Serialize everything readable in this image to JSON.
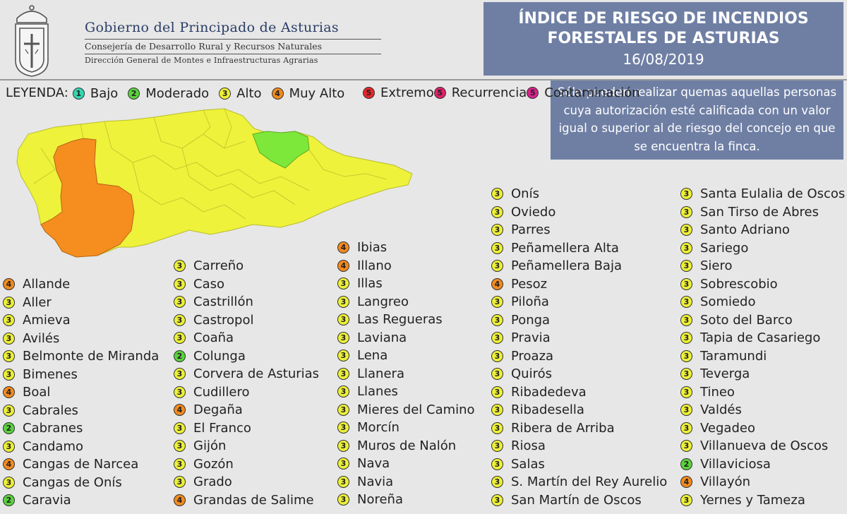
{
  "header": {
    "gov_title": "Gobierno del Principado de Asturias",
    "line1": "Consejería de Desarrollo Rural y Recursos Naturales",
    "line2": "Dirección General de Montes e Infraestructuras Agrarias",
    "title_line1": "ÍNDICE DE RIESGO DE INCENDIOS",
    "title_line2": "FORESTALES DE ASTURIAS",
    "date": "16/08/2019"
  },
  "info_text": "Sólo pueden realizar quemas aquellas personas cuya autorización esté calificada con un valor igual o superior al de riesgo del concejo en que se encuentra la finca.",
  "colors": {
    "1": "#33d6b0",
    "2": "#5ad23c",
    "3": "#ecf037",
    "4": "#f28a1e",
    "5": "#e8262a",
    "5r": "#e0206a",
    "5c": "#d8208c",
    "header_box": "#6f7fa4",
    "map_yellow": "#eef23a",
    "map_green": "#7ee83a",
    "map_orange": "#f58e1e"
  },
  "legend": {
    "title": "LEYENDA:",
    "items": [
      {
        "level": "1",
        "label": "Bajo",
        "color": "#33d6b0"
      },
      {
        "level": "2",
        "label": "Moderado",
        "color": "#5ad23c"
      },
      {
        "level": "3",
        "label": "Alto",
        "color": "#ecf037"
      },
      {
        "level": "4",
        "label": "Muy Alto",
        "color": "#f28a1e"
      }
    ],
    "stack": [
      {
        "level": "5",
        "label": "Extremo",
        "color": "#e8262a"
      },
      {
        "level": "5",
        "label": "Recurrencia",
        "color": "#e0206a"
      },
      {
        "level": "5",
        "label": "Contaminación",
        "color": "#d8208c"
      }
    ]
  },
  "municipalities": {
    "col1": [
      {
        "name": "Allande",
        "level": "4"
      },
      {
        "name": "Aller",
        "level": "3"
      },
      {
        "name": "Amieva",
        "level": "3"
      },
      {
        "name": "Avilés",
        "level": "3"
      },
      {
        "name": "Belmonte de Miranda",
        "level": "3"
      },
      {
        "name": "Bimenes",
        "level": "3"
      },
      {
        "name": "Boal",
        "level": "4"
      },
      {
        "name": "Cabrales",
        "level": "3"
      },
      {
        "name": "Cabranes",
        "level": "2"
      },
      {
        "name": "Candamo",
        "level": "3"
      },
      {
        "name": "Cangas de Narcea",
        "level": "4"
      },
      {
        "name": "Cangas de Onís",
        "level": "3"
      },
      {
        "name": "Caravia",
        "level": "2"
      }
    ],
    "col2": [
      {
        "name": "Carreño",
        "level": "3"
      },
      {
        "name": "Caso",
        "level": "3"
      },
      {
        "name": "Castrillón",
        "level": "3"
      },
      {
        "name": "Castropol",
        "level": "3"
      },
      {
        "name": "Coaña",
        "level": "3"
      },
      {
        "name": "Colunga",
        "level": "2"
      },
      {
        "name": "Corvera de Asturias",
        "level": "3"
      },
      {
        "name": "Cudillero",
        "level": "3"
      },
      {
        "name": "Degaña",
        "level": "4"
      },
      {
        "name": "El Franco",
        "level": "3"
      },
      {
        "name": "Gijón",
        "level": "3"
      },
      {
        "name": "Gozón",
        "level": "3"
      },
      {
        "name": "Grado",
        "level": "3"
      },
      {
        "name": "Grandas de Salime",
        "level": "4"
      }
    ],
    "col3": [
      {
        "name": "Ibias",
        "level": "4"
      },
      {
        "name": "Illano",
        "level": "4"
      },
      {
        "name": "Illas",
        "level": "3"
      },
      {
        "name": "Langreo",
        "level": "3"
      },
      {
        "name": "Las Regueras",
        "level": "3"
      },
      {
        "name": "Laviana",
        "level": "3"
      },
      {
        "name": "Lena",
        "level": "3"
      },
      {
        "name": "Llanera",
        "level": "3"
      },
      {
        "name": "Llanes",
        "level": "3"
      },
      {
        "name": "Mieres del Camino",
        "level": "3"
      },
      {
        "name": "Morcín",
        "level": "3"
      },
      {
        "name": "Muros de Nalón",
        "level": "3"
      },
      {
        "name": "Nava",
        "level": "3"
      },
      {
        "name": "Navia",
        "level": "3"
      },
      {
        "name": "Noreña",
        "level": "3"
      }
    ],
    "col4": [
      {
        "name": "Onís",
        "level": "3"
      },
      {
        "name": "Oviedo",
        "level": "3"
      },
      {
        "name": "Parres",
        "level": "3"
      },
      {
        "name": "Peñamellera Alta",
        "level": "3"
      },
      {
        "name": "Peñamellera Baja",
        "level": "3"
      },
      {
        "name": "Pesoz",
        "level": "4"
      },
      {
        "name": "Piloña",
        "level": "3"
      },
      {
        "name": "Ponga",
        "level": "3"
      },
      {
        "name": "Pravia",
        "level": "3"
      },
      {
        "name": "Proaza",
        "level": "3"
      },
      {
        "name": "Quirós",
        "level": "3"
      },
      {
        "name": "Ribadedeva",
        "level": "3"
      },
      {
        "name": "Ribadesella",
        "level": "3"
      },
      {
        "name": "Ribera de Arriba",
        "level": "3"
      },
      {
        "name": "Riosa",
        "level": "3"
      },
      {
        "name": "Salas",
        "level": "3"
      },
      {
        "name": "S. Martín del Rey Aurelio",
        "level": "3"
      },
      {
        "name": "San Martín de Oscos",
        "level": "3"
      }
    ],
    "col5": [
      {
        "name": "Santa Eulalia de Oscos",
        "level": "3"
      },
      {
        "name": "San Tirso de Abres",
        "level": "3"
      },
      {
        "name": "Santo Adriano",
        "level": "3"
      },
      {
        "name": "Sariego",
        "level": "3"
      },
      {
        "name": "Siero",
        "level": "3"
      },
      {
        "name": "Sobrescobio",
        "level": "3"
      },
      {
        "name": "Somiedo",
        "level": "3"
      },
      {
        "name": "Soto del Barco",
        "level": "3"
      },
      {
        "name": "Tapia de Casariego",
        "level": "3"
      },
      {
        "name": "Taramundi",
        "level": "3"
      },
      {
        "name": "Teverga",
        "level": "3"
      },
      {
        "name": "Tineo",
        "level": "3"
      },
      {
        "name": "Valdés",
        "level": "3"
      },
      {
        "name": "Vegadeo",
        "level": "3"
      },
      {
        "name": "Villanueva de Oscos",
        "level": "3"
      },
      {
        "name": "Villaviciosa",
        "level": "2"
      },
      {
        "name": "Villayón",
        "level": "4"
      },
      {
        "name": "Yernes y Tameza",
        "level": "3"
      }
    ]
  }
}
